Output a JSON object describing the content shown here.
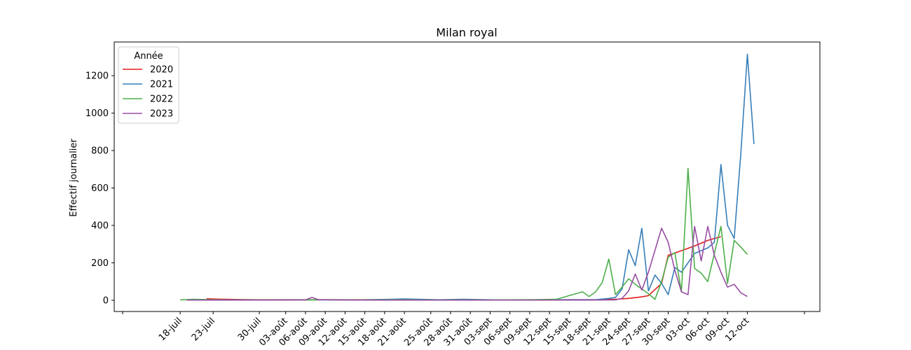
{
  "chart_data": {
    "type": "line",
    "title": "Milan royal",
    "xlabel": "",
    "ylabel": "Effectif journalier",
    "ylim": [
      -60,
      1380
    ],
    "yticks": [
      0,
      200,
      400,
      600,
      800,
      1000,
      1200
    ],
    "xlim": [
      "2000-07-08",
      "2000-10-23"
    ],
    "xtick_dates": [
      "2000-07-18",
      "2000-07-23",
      "2000-07-30",
      "2000-08-03",
      "2000-08-06",
      "2000-08-09",
      "2000-08-12",
      "2000-08-15",
      "2000-08-18",
      "2000-08-21",
      "2000-08-25",
      "2000-08-28",
      "2000-08-31",
      "2000-09-03",
      "2000-09-06",
      "2000-09-09",
      "2000-09-12",
      "2000-09-15",
      "2000-09-18",
      "2000-09-21",
      "2000-09-24",
      "2000-09-27",
      "2000-09-30",
      "2000-10-03",
      "2000-10-06",
      "2000-10-09",
      "2000-10-12"
    ],
    "xtick_labels": [
      "18-juil",
      "23-juil",
      "30-juil",
      "03-août",
      "06-août",
      "09-août",
      "12-août",
      "15-août",
      "18-août",
      "21-août",
      "25-août",
      "28-août",
      "31-août",
      "03-sept",
      "06-sept",
      "09-sept",
      "12-sept",
      "15-sept",
      "18-sept",
      "21-sept",
      "24-sept",
      "27-sept",
      "30-sept",
      "03-oct",
      "06-oct",
      "09-oct",
      "12-oct"
    ],
    "legend": {
      "title": "Année",
      "position": "top-left"
    },
    "grid": false,
    "series": [
      {
        "name": "2020",
        "color": "#e41a1c",
        "points": [
          [
            "2000-07-22",
            8
          ],
          [
            "2000-07-24",
            6
          ],
          [
            "2000-07-27",
            4
          ],
          [
            "2000-07-30",
            3
          ],
          [
            "2000-08-03",
            3
          ],
          [
            "2000-08-08",
            3
          ],
          [
            "2000-08-12",
            3
          ],
          [
            "2000-08-18",
            3
          ],
          [
            "2000-08-24",
            2
          ],
          [
            "2000-08-30",
            2
          ],
          [
            "2000-09-05",
            2
          ],
          [
            "2000-09-10",
            2
          ],
          [
            "2000-09-15",
            3
          ],
          [
            "2000-09-19",
            3
          ],
          [
            "2000-09-22",
            5
          ],
          [
            "2000-09-24",
            10
          ],
          [
            "2000-09-26",
            18
          ],
          [
            "2000-09-27",
            25
          ],
          [
            "2000-09-29",
            90
          ],
          [
            "2000-09-30",
            240
          ],
          [
            "2000-10-02",
            265
          ],
          [
            "2000-10-04",
            290
          ],
          [
            "2000-10-06",
            320
          ],
          [
            "2000-10-08",
            340
          ]
        ]
      },
      {
        "name": "2021",
        "color": "#377eb8",
        "points": [
          [
            "2000-07-20",
            3
          ],
          [
            "2000-07-25",
            2
          ],
          [
            "2000-07-30",
            2
          ],
          [
            "2000-08-04",
            2
          ],
          [
            "2000-08-09",
            2
          ],
          [
            "2000-08-14",
            2
          ],
          [
            "2000-08-19",
            5
          ],
          [
            "2000-08-21",
            7
          ],
          [
            "2000-08-26",
            3
          ],
          [
            "2000-08-30",
            5
          ],
          [
            "2000-09-04",
            2
          ],
          [
            "2000-09-09",
            2
          ],
          [
            "2000-09-14",
            3
          ],
          [
            "2000-09-19",
            3
          ],
          [
            "2000-09-21",
            10
          ],
          [
            "2000-09-22",
            15
          ],
          [
            "2000-09-23",
            60
          ],
          [
            "2000-09-24",
            270
          ],
          [
            "2000-09-25",
            185
          ],
          [
            "2000-09-26",
            385
          ],
          [
            "2000-09-27",
            50
          ],
          [
            "2000-09-28",
            135
          ],
          [
            "2000-09-29",
            90
          ],
          [
            "2000-09-30",
            30
          ],
          [
            "2000-10-01",
            175
          ],
          [
            "2000-10-02",
            150
          ],
          [
            "2000-10-03",
            200
          ],
          [
            "2000-10-04",
            250
          ],
          [
            "2000-10-05",
            265
          ],
          [
            "2000-10-06",
            280
          ],
          [
            "2000-10-07",
            310
          ],
          [
            "2000-10-08",
            725
          ],
          [
            "2000-10-09",
            400
          ],
          [
            "2000-10-10",
            330
          ],
          [
            "2000-10-11",
            780
          ],
          [
            "2000-10-12",
            1315
          ],
          [
            "2000-10-13",
            835
          ]
        ]
      },
      {
        "name": "2022",
        "color": "#4daf4a",
        "points": [
          [
            "2000-07-18",
            2
          ],
          [
            "2000-07-20",
            5
          ],
          [
            "2000-07-22",
            4
          ],
          [
            "2000-07-25",
            1
          ],
          [
            "2000-07-30",
            2
          ],
          [
            "2000-08-04",
            1
          ],
          [
            "2000-08-09",
            3
          ],
          [
            "2000-08-14",
            2
          ],
          [
            "2000-08-19",
            3
          ],
          [
            "2000-08-24",
            2
          ],
          [
            "2000-08-29",
            2
          ],
          [
            "2000-09-03",
            2
          ],
          [
            "2000-09-08",
            3
          ],
          [
            "2000-09-13",
            5
          ],
          [
            "2000-09-17",
            45
          ],
          [
            "2000-09-18",
            20
          ],
          [
            "2000-09-19",
            45
          ],
          [
            "2000-09-20",
            95
          ],
          [
            "2000-09-21",
            220
          ],
          [
            "2000-09-22",
            30
          ],
          [
            "2000-09-23",
            70
          ],
          [
            "2000-09-24",
            115
          ],
          [
            "2000-09-25",
            85
          ],
          [
            "2000-09-26",
            60
          ],
          [
            "2000-09-27",
            35
          ],
          [
            "2000-09-28",
            5
          ],
          [
            "2000-09-29",
            100
          ],
          [
            "2000-09-30",
            230
          ],
          [
            "2000-10-01",
            255
          ],
          [
            "2000-10-02",
            45
          ],
          [
            "2000-10-03",
            705
          ],
          [
            "2000-10-04",
            170
          ],
          [
            "2000-10-05",
            145
          ],
          [
            "2000-10-06",
            100
          ],
          [
            "2000-10-07",
            250
          ],
          [
            "2000-10-08",
            395
          ],
          [
            "2000-10-09",
            90
          ],
          [
            "2000-10-10",
            320
          ],
          [
            "2000-10-11",
            285
          ],
          [
            "2000-10-12",
            245
          ]
        ]
      },
      {
        "name": "2023",
        "color": "#984ea3",
        "points": [
          [
            "2000-07-19",
            1
          ],
          [
            "2000-07-24",
            1
          ],
          [
            "2000-07-29",
            1
          ],
          [
            "2000-08-03",
            1
          ],
          [
            "2000-08-06",
            2
          ],
          [
            "2000-08-07",
            15
          ],
          [
            "2000-08-08",
            3
          ],
          [
            "2000-08-13",
            1
          ],
          [
            "2000-08-18",
            1
          ],
          [
            "2000-08-23",
            1
          ],
          [
            "2000-08-28",
            1
          ],
          [
            "2000-09-02",
            1
          ],
          [
            "2000-09-07",
            1
          ],
          [
            "2000-09-12",
            1
          ],
          [
            "2000-09-17",
            1
          ],
          [
            "2000-09-22",
            2
          ],
          [
            "2000-09-23",
            10
          ],
          [
            "2000-09-24",
            50
          ],
          [
            "2000-09-25",
            140
          ],
          [
            "2000-09-26",
            55
          ],
          [
            "2000-09-27",
            150
          ],
          [
            "2000-09-29",
            385
          ],
          [
            "2000-09-30",
            310
          ],
          [
            "2000-10-01",
            160
          ],
          [
            "2000-10-02",
            45
          ],
          [
            "2000-10-03",
            30
          ],
          [
            "2000-10-04",
            395
          ],
          [
            "2000-10-05",
            210
          ],
          [
            "2000-10-06",
            395
          ],
          [
            "2000-10-07",
            240
          ],
          [
            "2000-10-08",
            150
          ],
          [
            "2000-10-09",
            70
          ],
          [
            "2000-10-10",
            85
          ],
          [
            "2000-10-11",
            40
          ],
          [
            "2000-10-12",
            20
          ]
        ]
      }
    ]
  }
}
